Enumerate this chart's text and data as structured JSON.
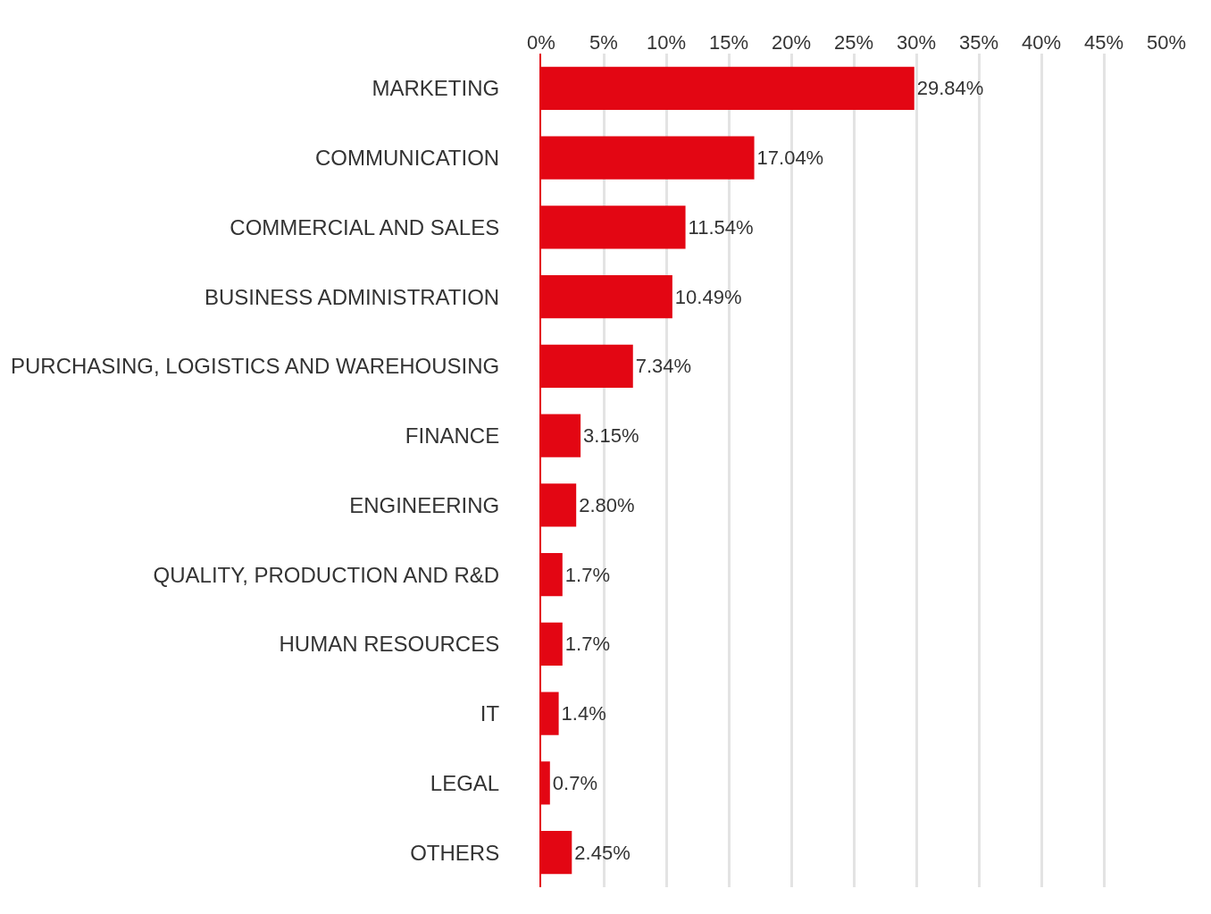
{
  "chart_data": {
    "type": "bar",
    "orientation": "horizontal",
    "categories": [
      "MARKETING",
      "COMMUNICATION",
      "COMMERCIAL AND SALES",
      "BUSINESS ADMINISTRATION",
      "PURCHASING, LOGISTICS AND WAREHOUSING",
      "FINANCE",
      "ENGINEERING",
      "QUALITY, PRODUCTION AND R&D",
      "HUMAN RESOURCES",
      "IT",
      "LEGAL",
      "OTHERS"
    ],
    "values": [
      29.84,
      17.04,
      11.54,
      10.49,
      7.34,
      3.15,
      2.8,
      1.7,
      1.7,
      1.4,
      0.7,
      2.45
    ],
    "value_labels": [
      "29.84%",
      "17.04%",
      "11.54%",
      "10.49%",
      "7.34%",
      "3.15%",
      "2.80%",
      "1.7%",
      "1.7%",
      "1.4%",
      "0.7%",
      "2.45%"
    ],
    "color": "#e30613",
    "xlim": [
      0,
      50
    ],
    "xticks": [
      {
        "value": 0,
        "label": "0%"
      },
      {
        "value": 5,
        "label": "5%"
      },
      {
        "value": 10,
        "label": "10%"
      },
      {
        "value": 15,
        "label": "15%"
      },
      {
        "value": 20,
        "label": "20%"
      },
      {
        "value": 25,
        "label": "25%"
      },
      {
        "value": 30,
        "label": "30%"
      },
      {
        "value": 35,
        "label": "35%"
      },
      {
        "value": 40,
        "label": "40%"
      },
      {
        "value": 45,
        "label": "45%"
      },
      {
        "value": 50,
        "label": "50%"
      }
    ],
    "grid": "x"
  }
}
